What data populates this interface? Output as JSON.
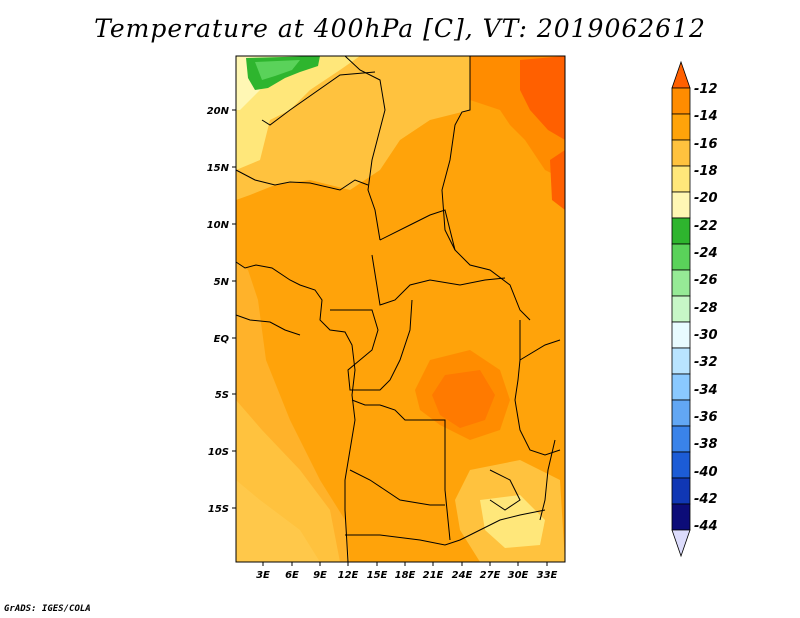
{
  "title": "Temperature at 400hPa [C], VT: 2019062612",
  "credit": "GrADS: IGES/COLA",
  "map": {
    "lat_labels": [
      "20N",
      "15N",
      "10N",
      "5N",
      "EQ",
      "5S",
      "10S",
      "15S"
    ],
    "lon_labels": [
      "3E",
      "6E",
      "9E",
      "12E",
      "15E",
      "18E",
      "21E",
      "24E",
      "27E",
      "30E",
      "33E"
    ]
  },
  "colorbar": {
    "labels": [
      "-12",
      "-14",
      "-16",
      "-18",
      "-20",
      "-22",
      "-24",
      "-26",
      "-28",
      "-30",
      "-32",
      "-34",
      "-36",
      "-38",
      "-40",
      "-42",
      "-44"
    ],
    "colors": [
      "#ff6000",
      "#ff8c00",
      "#ffa30a",
      "#ffc23e",
      "#ffe77a",
      "#fff7b4",
      "#2eb52e",
      "#5ad25a",
      "#96ea96",
      "#c7f7c7",
      "#e8fbff",
      "#b9e4ff",
      "#8ac9ff",
      "#62a7f4",
      "#3a83e9",
      "#1c5cd6",
      "#1037b4",
      "#0c0c78",
      "#dcdcfc"
    ]
  }
}
